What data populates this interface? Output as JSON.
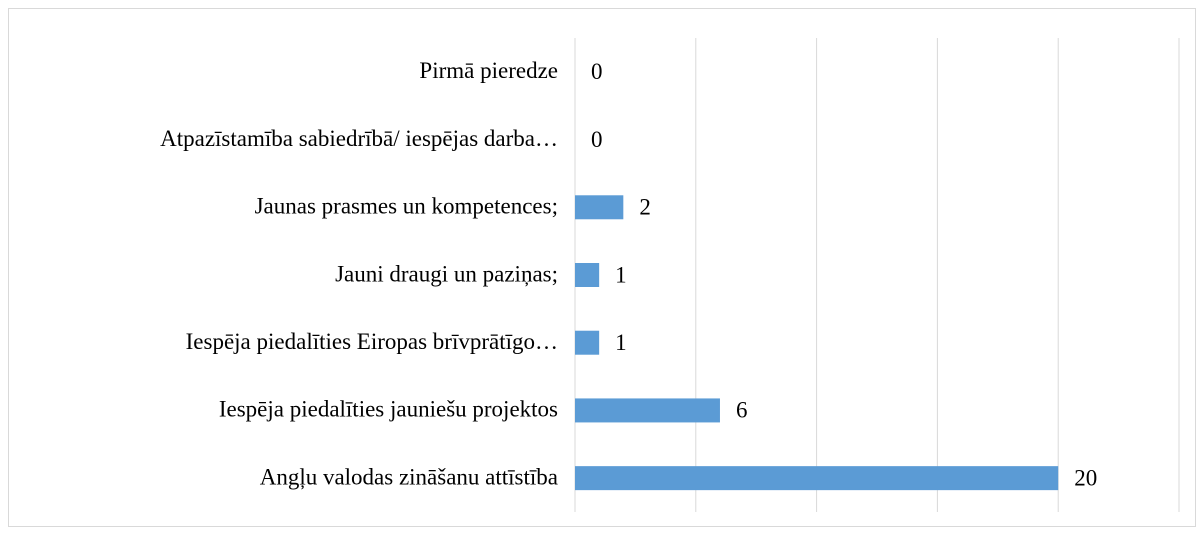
{
  "chart_data": {
    "type": "hbar",
    "categories": [
      "Pirmā pieredze",
      "Atpazīstamība sabiedrībā/ iespējas darba…",
      "Jaunas prasmes un kompetences;",
      "Jauni draugi un paziņas;",
      "Iespēja piedalīties Eiropas brīvprātīgo…",
      "Iespēja piedalīties jauniešu projektos",
      "Angļu valodas zināšanu attīstība"
    ],
    "values": [
      0,
      0,
      2,
      1,
      1,
      6,
      20
    ],
    "color": "#5b9bd5",
    "xlim": [
      0,
      25
    ],
    "xticks": [
      0,
      5,
      10,
      15,
      20,
      25
    ],
    "grid": true
  }
}
